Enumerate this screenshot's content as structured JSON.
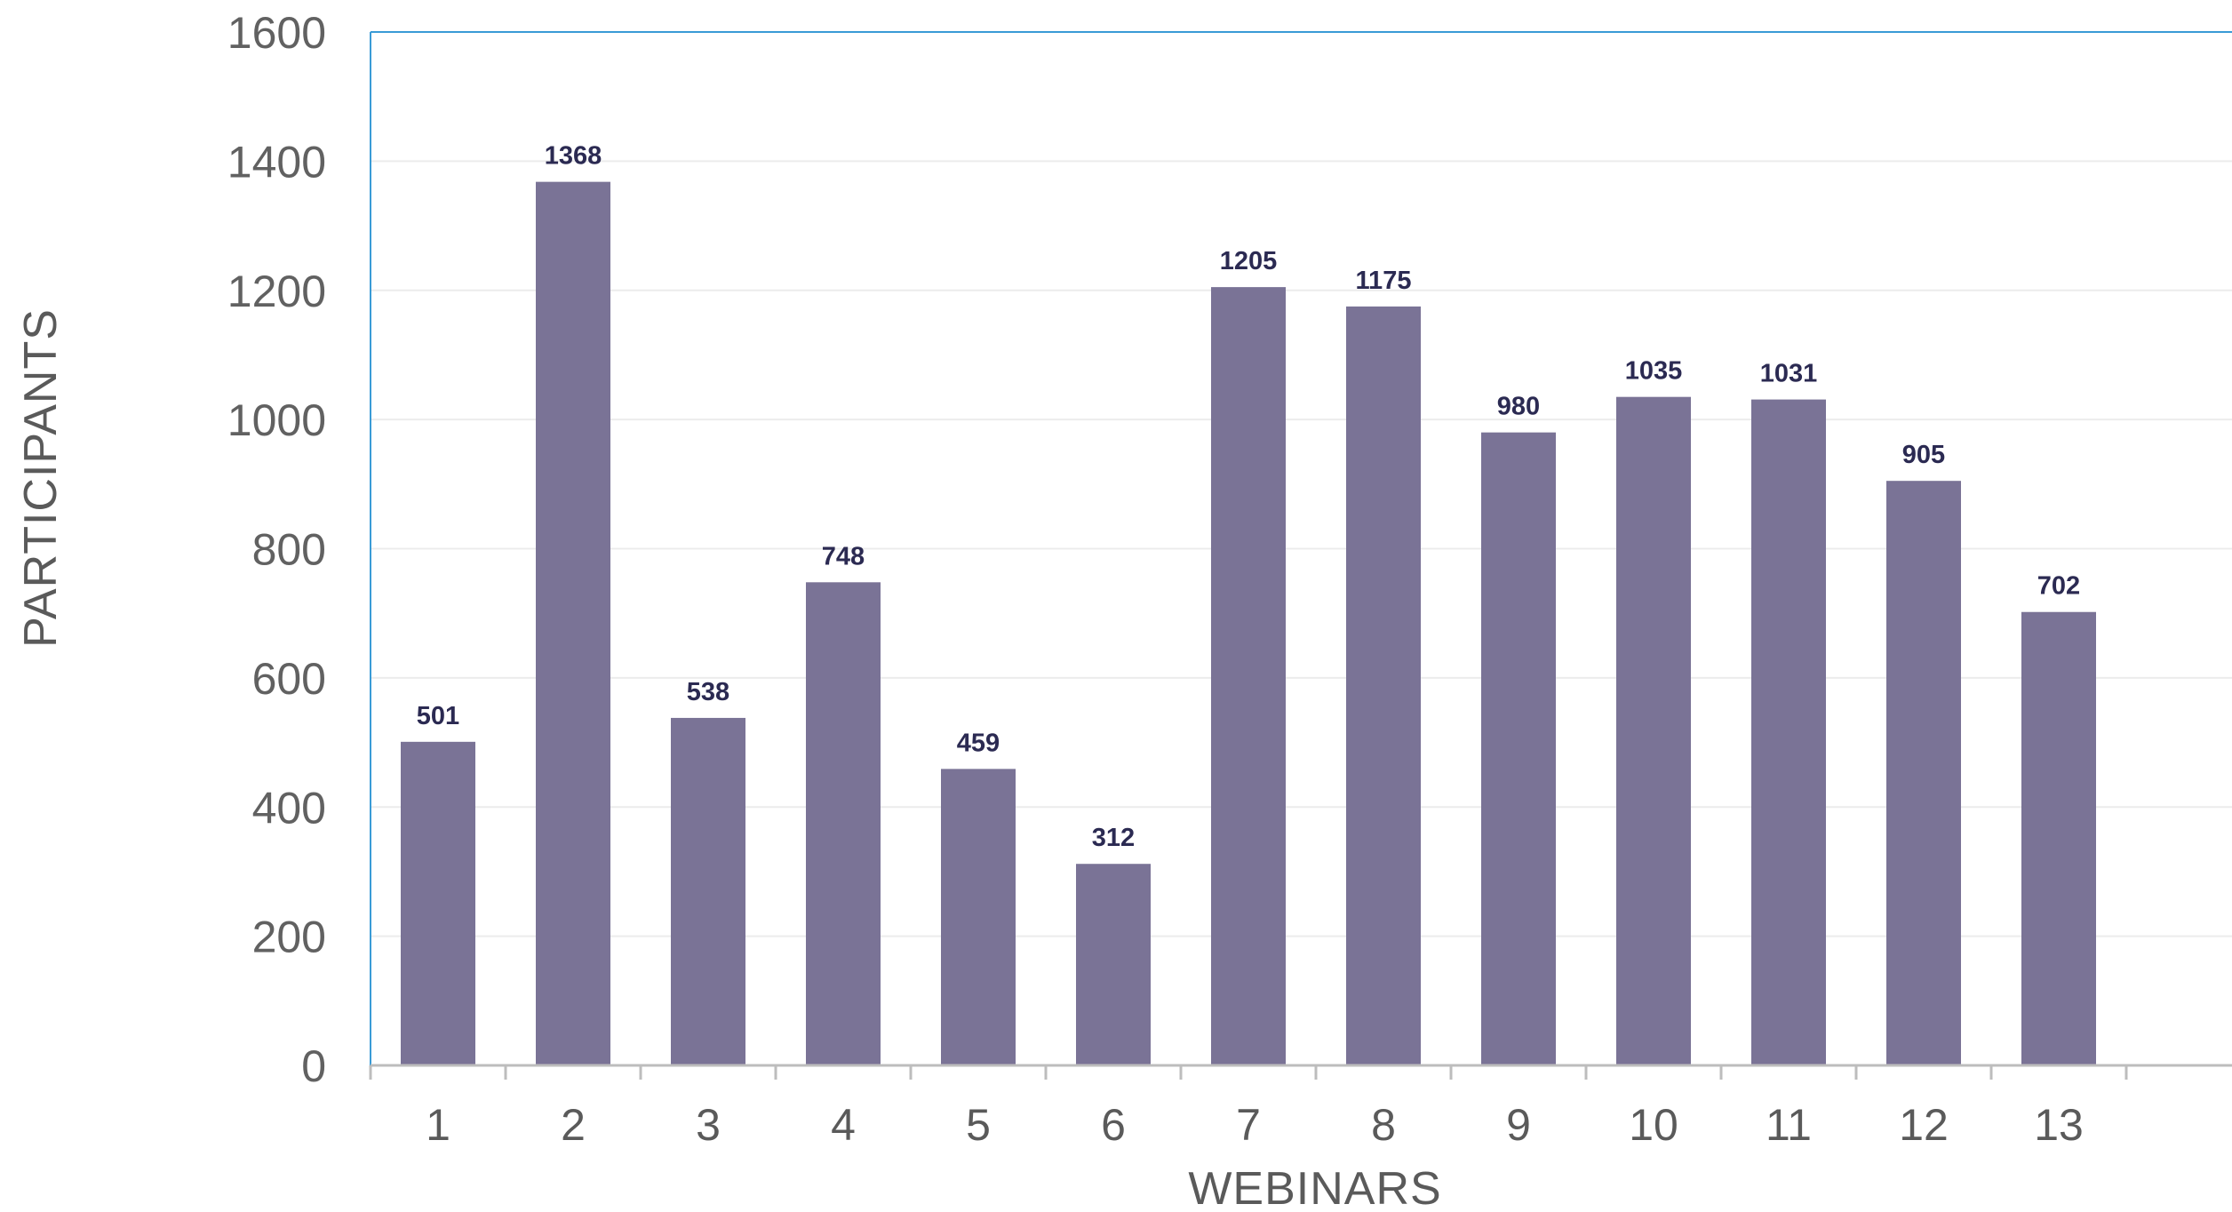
{
  "chart_data": {
    "type": "bar",
    "categories": [
      "1",
      "2",
      "3",
      "4",
      "5",
      "6",
      "7",
      "8",
      "9",
      "10",
      "11",
      "12",
      "13"
    ],
    "values": [
      501,
      1368,
      538,
      748,
      459,
      312,
      1205,
      1175,
      980,
      1035,
      1031,
      905,
      702
    ],
    "data_labels": [
      "501",
      "1368",
      "538",
      "748",
      "459",
      "312",
      "1205",
      "1175",
      "980",
      "1035",
      "1031",
      "905",
      "702"
    ],
    "xlabel": "WEBINARS",
    "ylabel": "PARTICIPANTS",
    "ylim": [
      0,
      1600
    ],
    "yticks": [
      "0",
      "200",
      "400",
      "600",
      "800",
      "1000",
      "1200",
      "1400",
      "1600"
    ],
    "grid": true,
    "colors": {
      "bar": "#7a7396",
      "plot_border": "#3a9bd6",
      "baseline": "#bdbdbd",
      "grid": "#ececec"
    }
  }
}
